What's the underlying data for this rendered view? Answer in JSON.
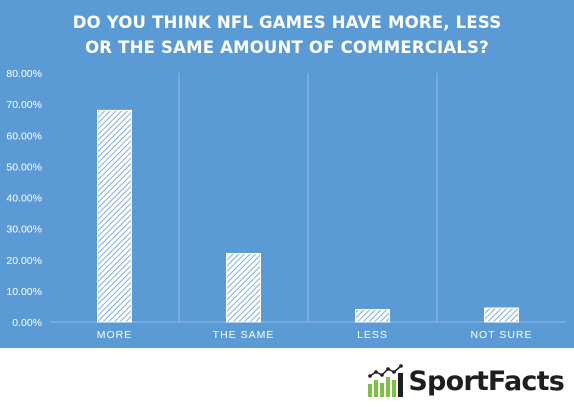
{
  "chart_data": {
    "type": "bar",
    "title_lines": [
      "DO YOU THINK NFL GAMES HAVE MORE, LESS",
      "OR THE SAME AMOUNT OF COMMERCIALS?"
    ],
    "categories": [
      "MORE",
      "THE SAME",
      "LESS",
      "NOT SURE"
    ],
    "values": [
      0.68,
      0.22,
      0.04,
      0.045
    ],
    "ylim": [
      0,
      0.8
    ],
    "yticks": [
      "0.00%",
      "10.00%",
      "20.00%",
      "30.00%",
      "40.00%",
      "50.00%",
      "60.00%",
      "70.00%",
      "80.00%"
    ],
    "grid": "vertical category separators",
    "legend": "none"
  },
  "colors": {
    "background": "#5b9bd5",
    "bar_fill": "#ffffff",
    "bar_hatch": "#5b9bd5",
    "text": "#ffffff",
    "logo_green": "#7dc242",
    "logo_text": "#1f1f1f"
  },
  "logo": {
    "text": "SportFacts",
    "icon": "bar-chart-trend-icon"
  }
}
